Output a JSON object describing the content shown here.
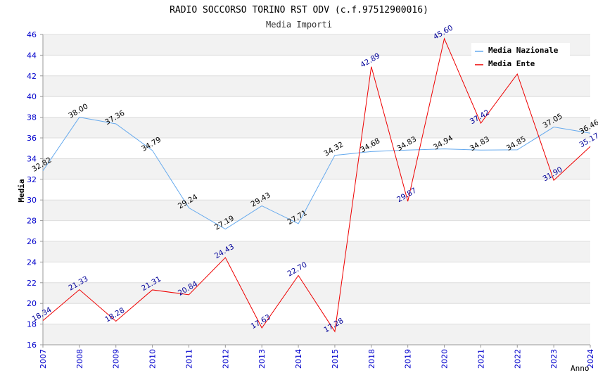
{
  "chart_data": {
    "type": "line",
    "title": "RADIO SOCCORSO TORINO RST ODV (c.f.97512900016)",
    "subtitle": "Media Importi",
    "xlabel": "Anno",
    "ylabel": "Media",
    "ylim": [
      16,
      46
    ],
    "yticks": [
      "16",
      "18",
      "20",
      "22",
      "24",
      "26",
      "28",
      "30",
      "32",
      "34",
      "36",
      "38",
      "40",
      "42",
      "44",
      "46"
    ],
    "categories": [
      "2007",
      "2008",
      "2009",
      "2010",
      "2011",
      "2012",
      "2013",
      "2014",
      "2015",
      "2018",
      "2019",
      "2020",
      "2021",
      "2022",
      "2023",
      "2024"
    ],
    "legend_position": "top-right",
    "grid": true,
    "series": [
      {
        "name": "Media Nazionale",
        "color": "#66aaee",
        "label_color": "#000000",
        "values": [
          32.82,
          38.0,
          37.36,
          34.79,
          29.24,
          27.19,
          29.43,
          27.71,
          34.32,
          34.68,
          34.83,
          34.94,
          34.83,
          34.85,
          37.05,
          36.46
        ],
        "labels": [
          "32.82",
          "38.00",
          "37.36",
          "34.79",
          "29.24",
          "27.19",
          "29.43",
          "27.71",
          "34.32",
          "34.68",
          "34.83",
          "34.94",
          "34.83",
          "34.85",
          "37.05",
          "36.46"
        ]
      },
      {
        "name": "Media Ente",
        "color": "#ee0000",
        "label_color": "#000099",
        "values": [
          18.34,
          21.33,
          18.28,
          21.31,
          20.84,
          24.43,
          17.63,
          22.7,
          17.28,
          42.89,
          29.87,
          45.6,
          37.42,
          42.18,
          31.9,
          35.17
        ],
        "labels": [
          "18.34",
          "21.33",
          "18.28",
          "21.31",
          "20.84",
          "24.43",
          "17.63",
          "22.70",
          "17.28",
          "42.89",
          "29.87",
          "45.60",
          "37.42",
          "",
          "31.90",
          "35.17"
        ]
      }
    ]
  }
}
